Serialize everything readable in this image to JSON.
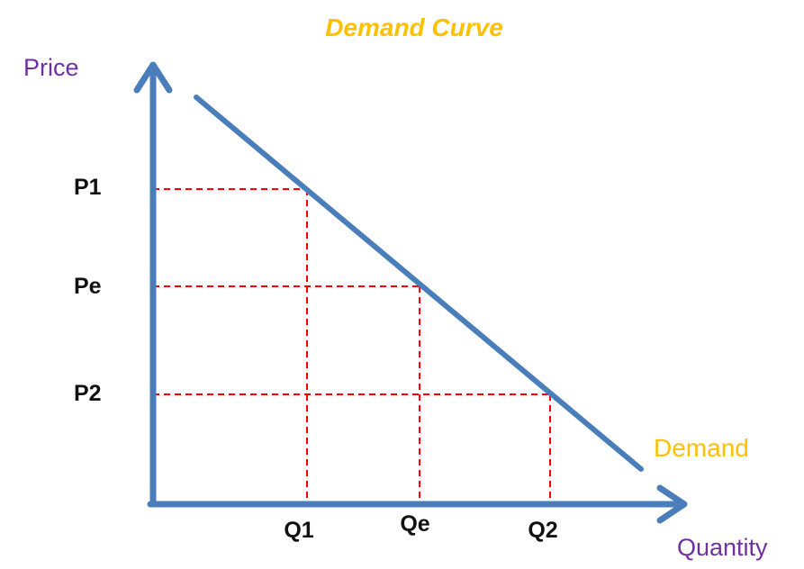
{
  "title": "Demand Curve",
  "axes": {
    "y_label": "Price",
    "x_label": "Quantity"
  },
  "price_levels": [
    "P1",
    "Pe",
    "P2"
  ],
  "quantity_levels": [
    "Q1",
    "Qe",
    "Q2"
  ],
  "curve_label": "Demand",
  "colors": {
    "axis": "#4a7ebb",
    "curve": "#4a7ebb",
    "guides": "#ff0000",
    "title": "#ffc000",
    "axis_titles": "#7030a0",
    "curve_label": "#ffc000",
    "tick_text": "#111111"
  }
}
